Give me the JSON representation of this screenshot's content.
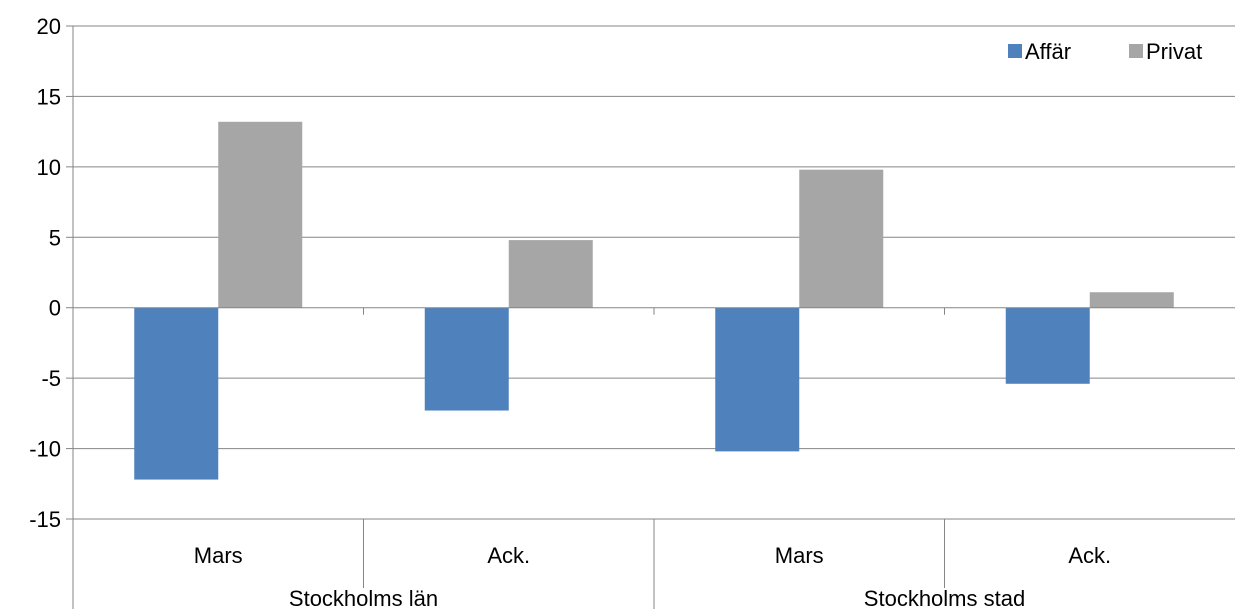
{
  "chart_data": {
    "type": "bar",
    "title": "",
    "xlabel": "",
    "ylabel": "",
    "ylim": [
      -15,
      20
    ],
    "yticks": [
      20,
      15,
      10,
      5,
      0,
      -5,
      -10,
      -15
    ],
    "grid": true,
    "legend_position": "top-right",
    "groups": [
      {
        "label": "Stockholms län",
        "categories": [
          "Mars",
          "Ack."
        ]
      },
      {
        "label": "Stockholms stad",
        "categories": [
          "Mars",
          "Ack."
        ]
      }
    ],
    "categories": [
      "Mars",
      "Ack.",
      "Mars",
      "Ack."
    ],
    "series": [
      {
        "name": "Affär",
        "color": "#4f81bd",
        "values": [
          -12.2,
          -7.3,
          -10.2,
          -5.4
        ]
      },
      {
        "name": "Privat",
        "color": "#a6a6a6",
        "values": [
          13.2,
          4.8,
          9.8,
          1.1
        ]
      }
    ]
  }
}
